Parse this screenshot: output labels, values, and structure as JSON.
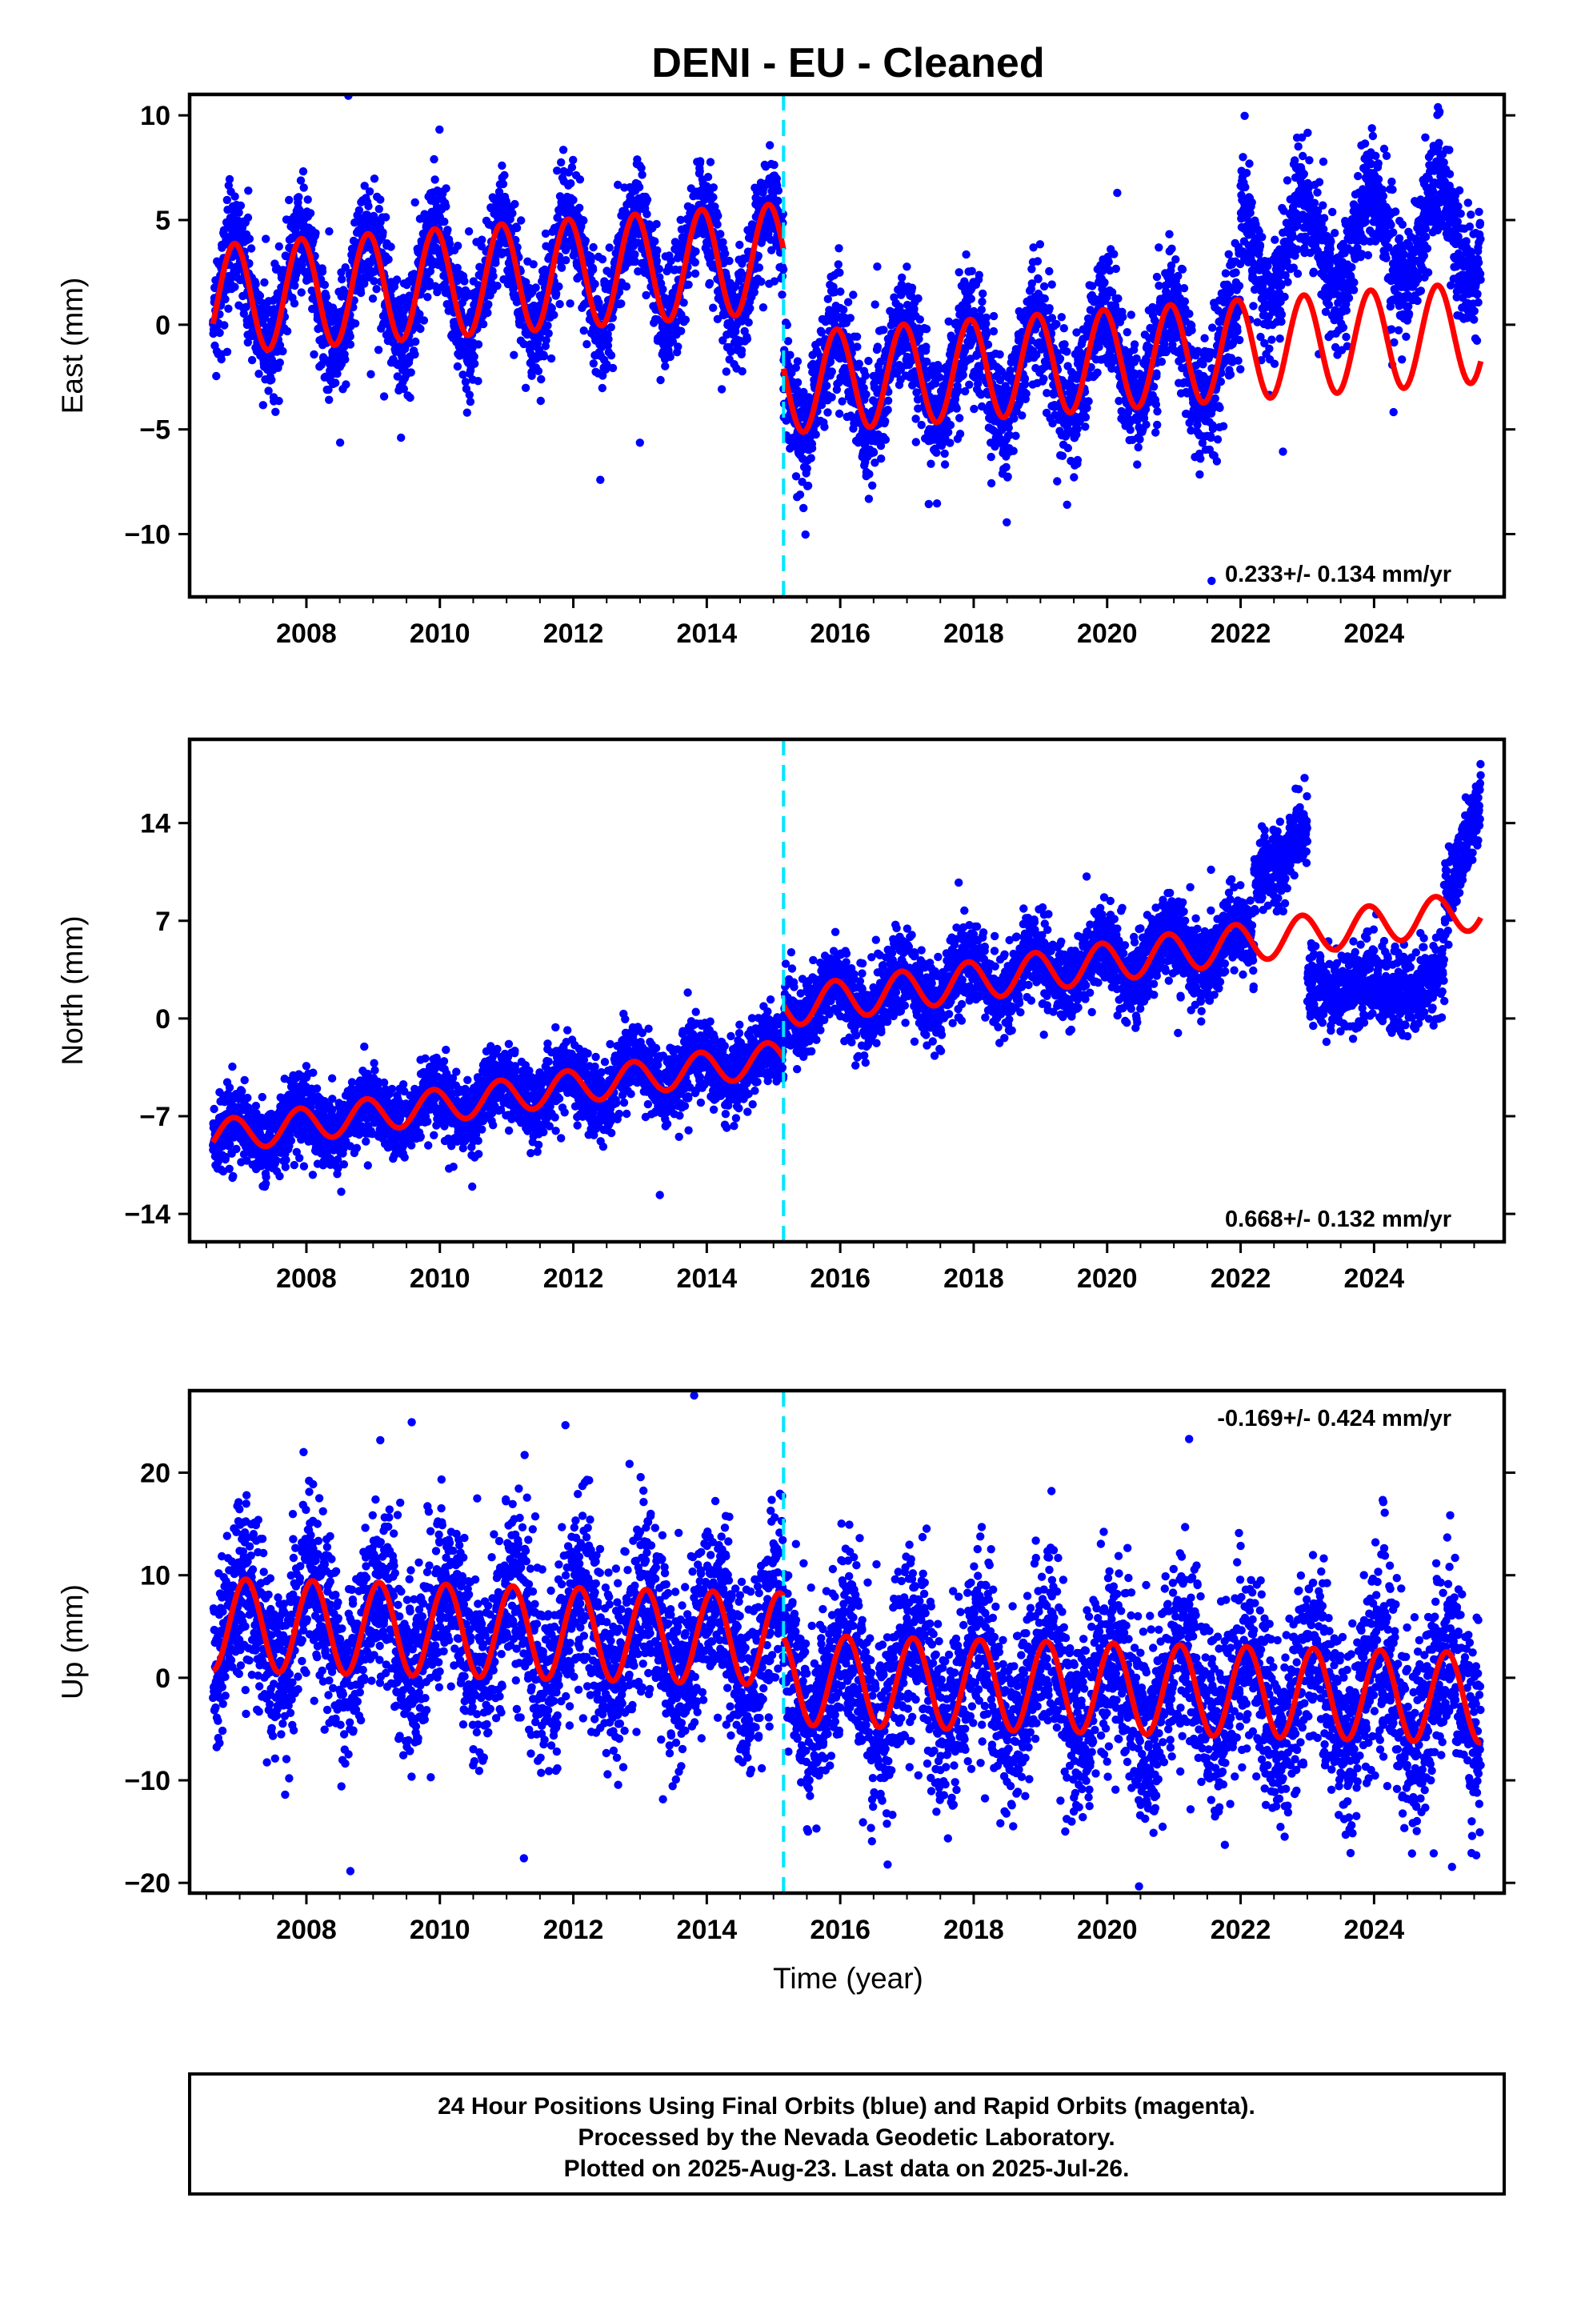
{
  "title": "DENI  - EU - Cleaned",
  "xlabel": "Time (year)",
  "footer": {
    "line1": "24 Hour Positions Using Final Orbits (blue) and Rapid Orbits (magenta).",
    "line2": "Processed by the Nevada Geodetic Laboratory.",
    "line3": "Plotted on 2025-Aug-23. Last data on 2025-Jul-26."
  },
  "colors": {
    "data": "#0000ff",
    "model": "#ff0000",
    "break_line": "#00e5ff",
    "frame": "#000000"
  },
  "chart_data": [
    {
      "type": "scatter",
      "ylabel": "East (mm)",
      "rate_text": "0.233+/- 0.134 mm/yr",
      "xlim": [
        2006.25,
        2025.95
      ],
      "ylim": [
        -13.0,
        11.0
      ],
      "yticks": [
        -10,
        -5,
        0,
        5,
        10
      ],
      "ytick_labels": [
        "−10",
        "−5",
        "0",
        "5",
        "10"
      ],
      "xticks": [
        2008,
        2010,
        2012,
        2014,
        2016,
        2018,
        2020,
        2022,
        2024
      ],
      "break_year": 2015.15,
      "segments": [
        {
          "start": 2006.6,
          "end": 2015.15,
          "offset": 1.2,
          "rate": 0.233,
          "amp": 2.6,
          "phase": 2.05,
          "noise": 1.3
        },
        {
          "start": 2015.15,
          "end": 2022.0,
          "offset": -2.8,
          "rate": 0.233,
          "amp": 2.3,
          "phase": 1.9,
          "noise": 1.4
        },
        {
          "start": 2022.0,
          "end": 2025.6,
          "offset": 3.6,
          "rate": 0.233,
          "amp": 2.4,
          "phase": 1.9,
          "noise": 1.3
        }
      ],
      "model_segments": [
        {
          "start": 2006.6,
          "end": 2015.15,
          "offset": 1.2,
          "rate": 0.233,
          "amp": 2.6,
          "phase": 2.05
        },
        {
          "start": 2015.15,
          "end": 2025.6,
          "offset": -2.8,
          "rate": 0.233,
          "amp": 2.4,
          "phase": 1.9
        }
      ],
      "rate_position": "bottom-right"
    },
    {
      "type": "scatter",
      "ylabel": "North (mm)",
      "rate_text": "0.668+/- 0.132 mm/yr",
      "xlim": [
        2006.25,
        2025.95
      ],
      "ylim": [
        -16.0,
        20.0
      ],
      "yticks": [
        -14,
        -7,
        0,
        7,
        14
      ],
      "ytick_labels": [
        "−14",
        "−7",
        "0",
        "7",
        "14"
      ],
      "xticks": [
        2008,
        2010,
        2012,
        2014,
        2016,
        2018,
        2020,
        2022,
        2024
      ],
      "break_year": 2015.15,
      "segments": [
        {
          "start": 2006.6,
          "end": 2015.15,
          "offset": -8.5,
          "rate": 0.668,
          "amp": 1.2,
          "phase": 2.2,
          "noise": 1.3
        },
        {
          "start": 2015.15,
          "end": 2022.2,
          "offset": 0.8,
          "rate": 0.668,
          "amp": 1.4,
          "phase": 2.1,
          "noise": 1.4
        },
        {
          "start": 2022.2,
          "end": 2023.0,
          "offset": 10.4,
          "rate": 3.0,
          "amp": 0.5,
          "phase": 2.0,
          "noise": 1.3
        },
        {
          "start": 2023.0,
          "end": 2025.05,
          "offset": 2.0,
          "rate": 0.3,
          "amp": 0.6,
          "phase": 2.0,
          "noise": 1.4
        },
        {
          "start": 2025.05,
          "end": 2025.6,
          "offset": 7.5,
          "rate": 16.0,
          "amp": 0.3,
          "phase": 2.0,
          "noise": 1.3
        }
      ],
      "model_segments": [
        {
          "start": 2006.6,
          "end": 2015.15,
          "offset": -8.5,
          "rate": 0.668,
          "amp": 1.2,
          "phase": 2.2
        },
        {
          "start": 2015.15,
          "end": 2025.6,
          "offset": 0.8,
          "rate": 0.668,
          "amp": 1.4,
          "phase": 2.1
        }
      ],
      "rate_position": "bottom-right"
    },
    {
      "type": "scatter",
      "ylabel": "Up (mm)",
      "rate_text": "-0.169+/- 0.424 mm/yr",
      "xlim": [
        2006.25,
        2025.95
      ],
      "ylim": [
        -21.0,
        28.0
      ],
      "yticks": [
        -20,
        -10,
        0,
        10,
        20
      ],
      "ytick_labels": [
        "−20",
        "−10",
        "0",
        "10",
        "20"
      ],
      "xticks": [
        2008,
        2010,
        2012,
        2014,
        2016,
        2018,
        2020,
        2022,
        2024
      ],
      "break_year": 2015.15,
      "segments": [
        {
          "start": 2006.6,
          "end": 2015.15,
          "offset": 5.2,
          "rate": -0.169,
          "amp": 4.5,
          "phase": 1.0,
          "noise": 4.3
        },
        {
          "start": 2015.15,
          "end": 2025.6,
          "offset": -0.2,
          "rate": -0.169,
          "amp": 4.4,
          "phase": 1.0,
          "noise": 4.5
        }
      ],
      "model_segments": [
        {
          "start": 2006.6,
          "end": 2015.15,
          "offset": 5.2,
          "rate": -0.169,
          "amp": 4.5,
          "phase": 1.0
        },
        {
          "start": 2015.15,
          "end": 2025.6,
          "offset": -0.2,
          "rate": -0.169,
          "amp": 4.4,
          "phase": 1.0
        }
      ],
      "rate_position": "top-right"
    }
  ]
}
